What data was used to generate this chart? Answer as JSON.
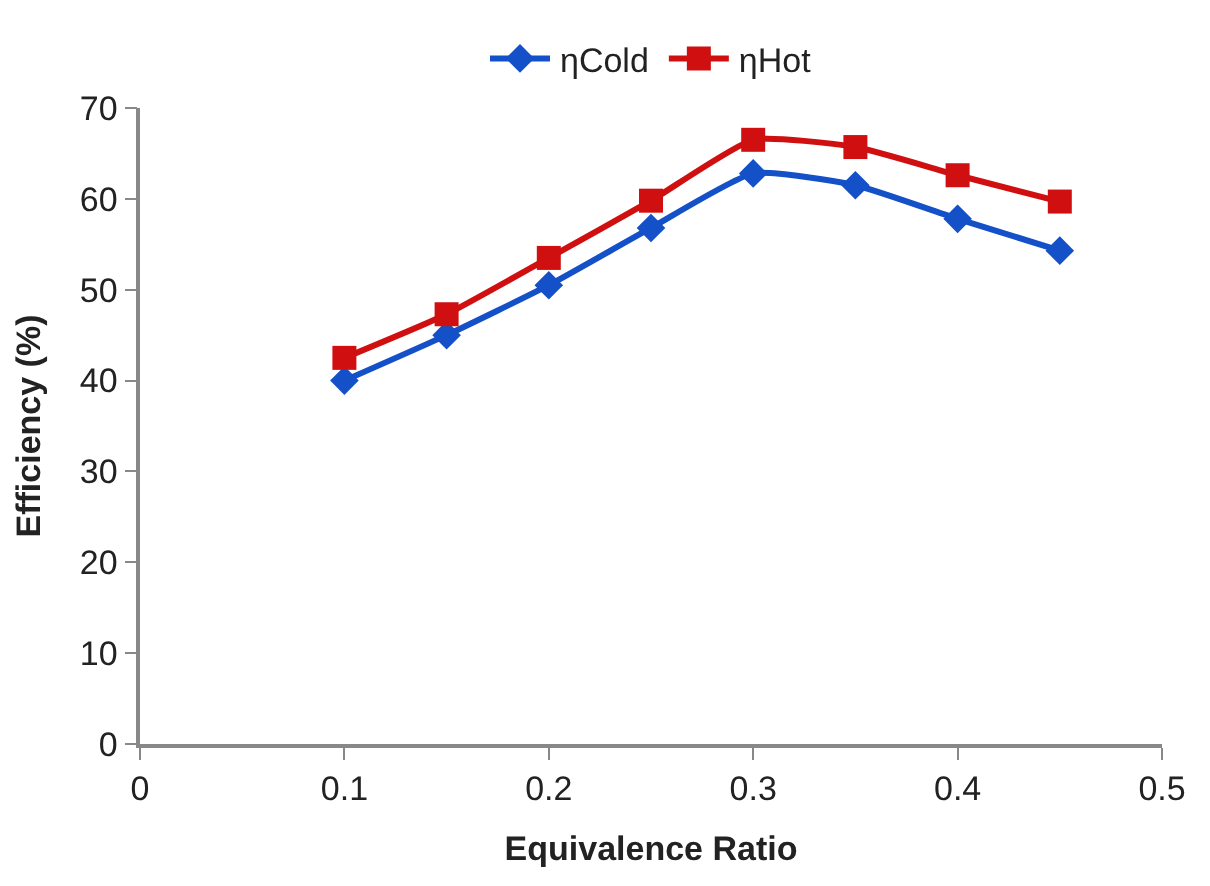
{
  "chart_data": {
    "type": "line",
    "xlabel": "Equivalence Ratio",
    "ylabel": "Efficiency (%)",
    "x": [
      0.1,
      0.15,
      0.2,
      0.25,
      0.3,
      0.35,
      0.4,
      0.45
    ],
    "series": [
      {
        "name": "ηCold",
        "color": "#1450c8",
        "marker": "diamond",
        "values": [
          40,
          45,
          50.5,
          56.8,
          62.8,
          61.5,
          57.8,
          54.3
        ]
      },
      {
        "name": "ηHot",
        "color": "#d01010",
        "marker": "square",
        "values": [
          42.5,
          47.3,
          53.5,
          59.8,
          66.5,
          65.7,
          62.6,
          59.7
        ]
      }
    ],
    "xlim": [
      0,
      0.5
    ],
    "xticks": [
      0,
      0.1,
      0.2,
      0.3,
      0.4,
      0.5
    ],
    "ylim": [
      0,
      70
    ],
    "yticks": [
      0,
      10,
      20,
      30,
      40,
      50,
      60,
      70
    ],
    "legend": "top",
    "line_style": "solid"
  }
}
